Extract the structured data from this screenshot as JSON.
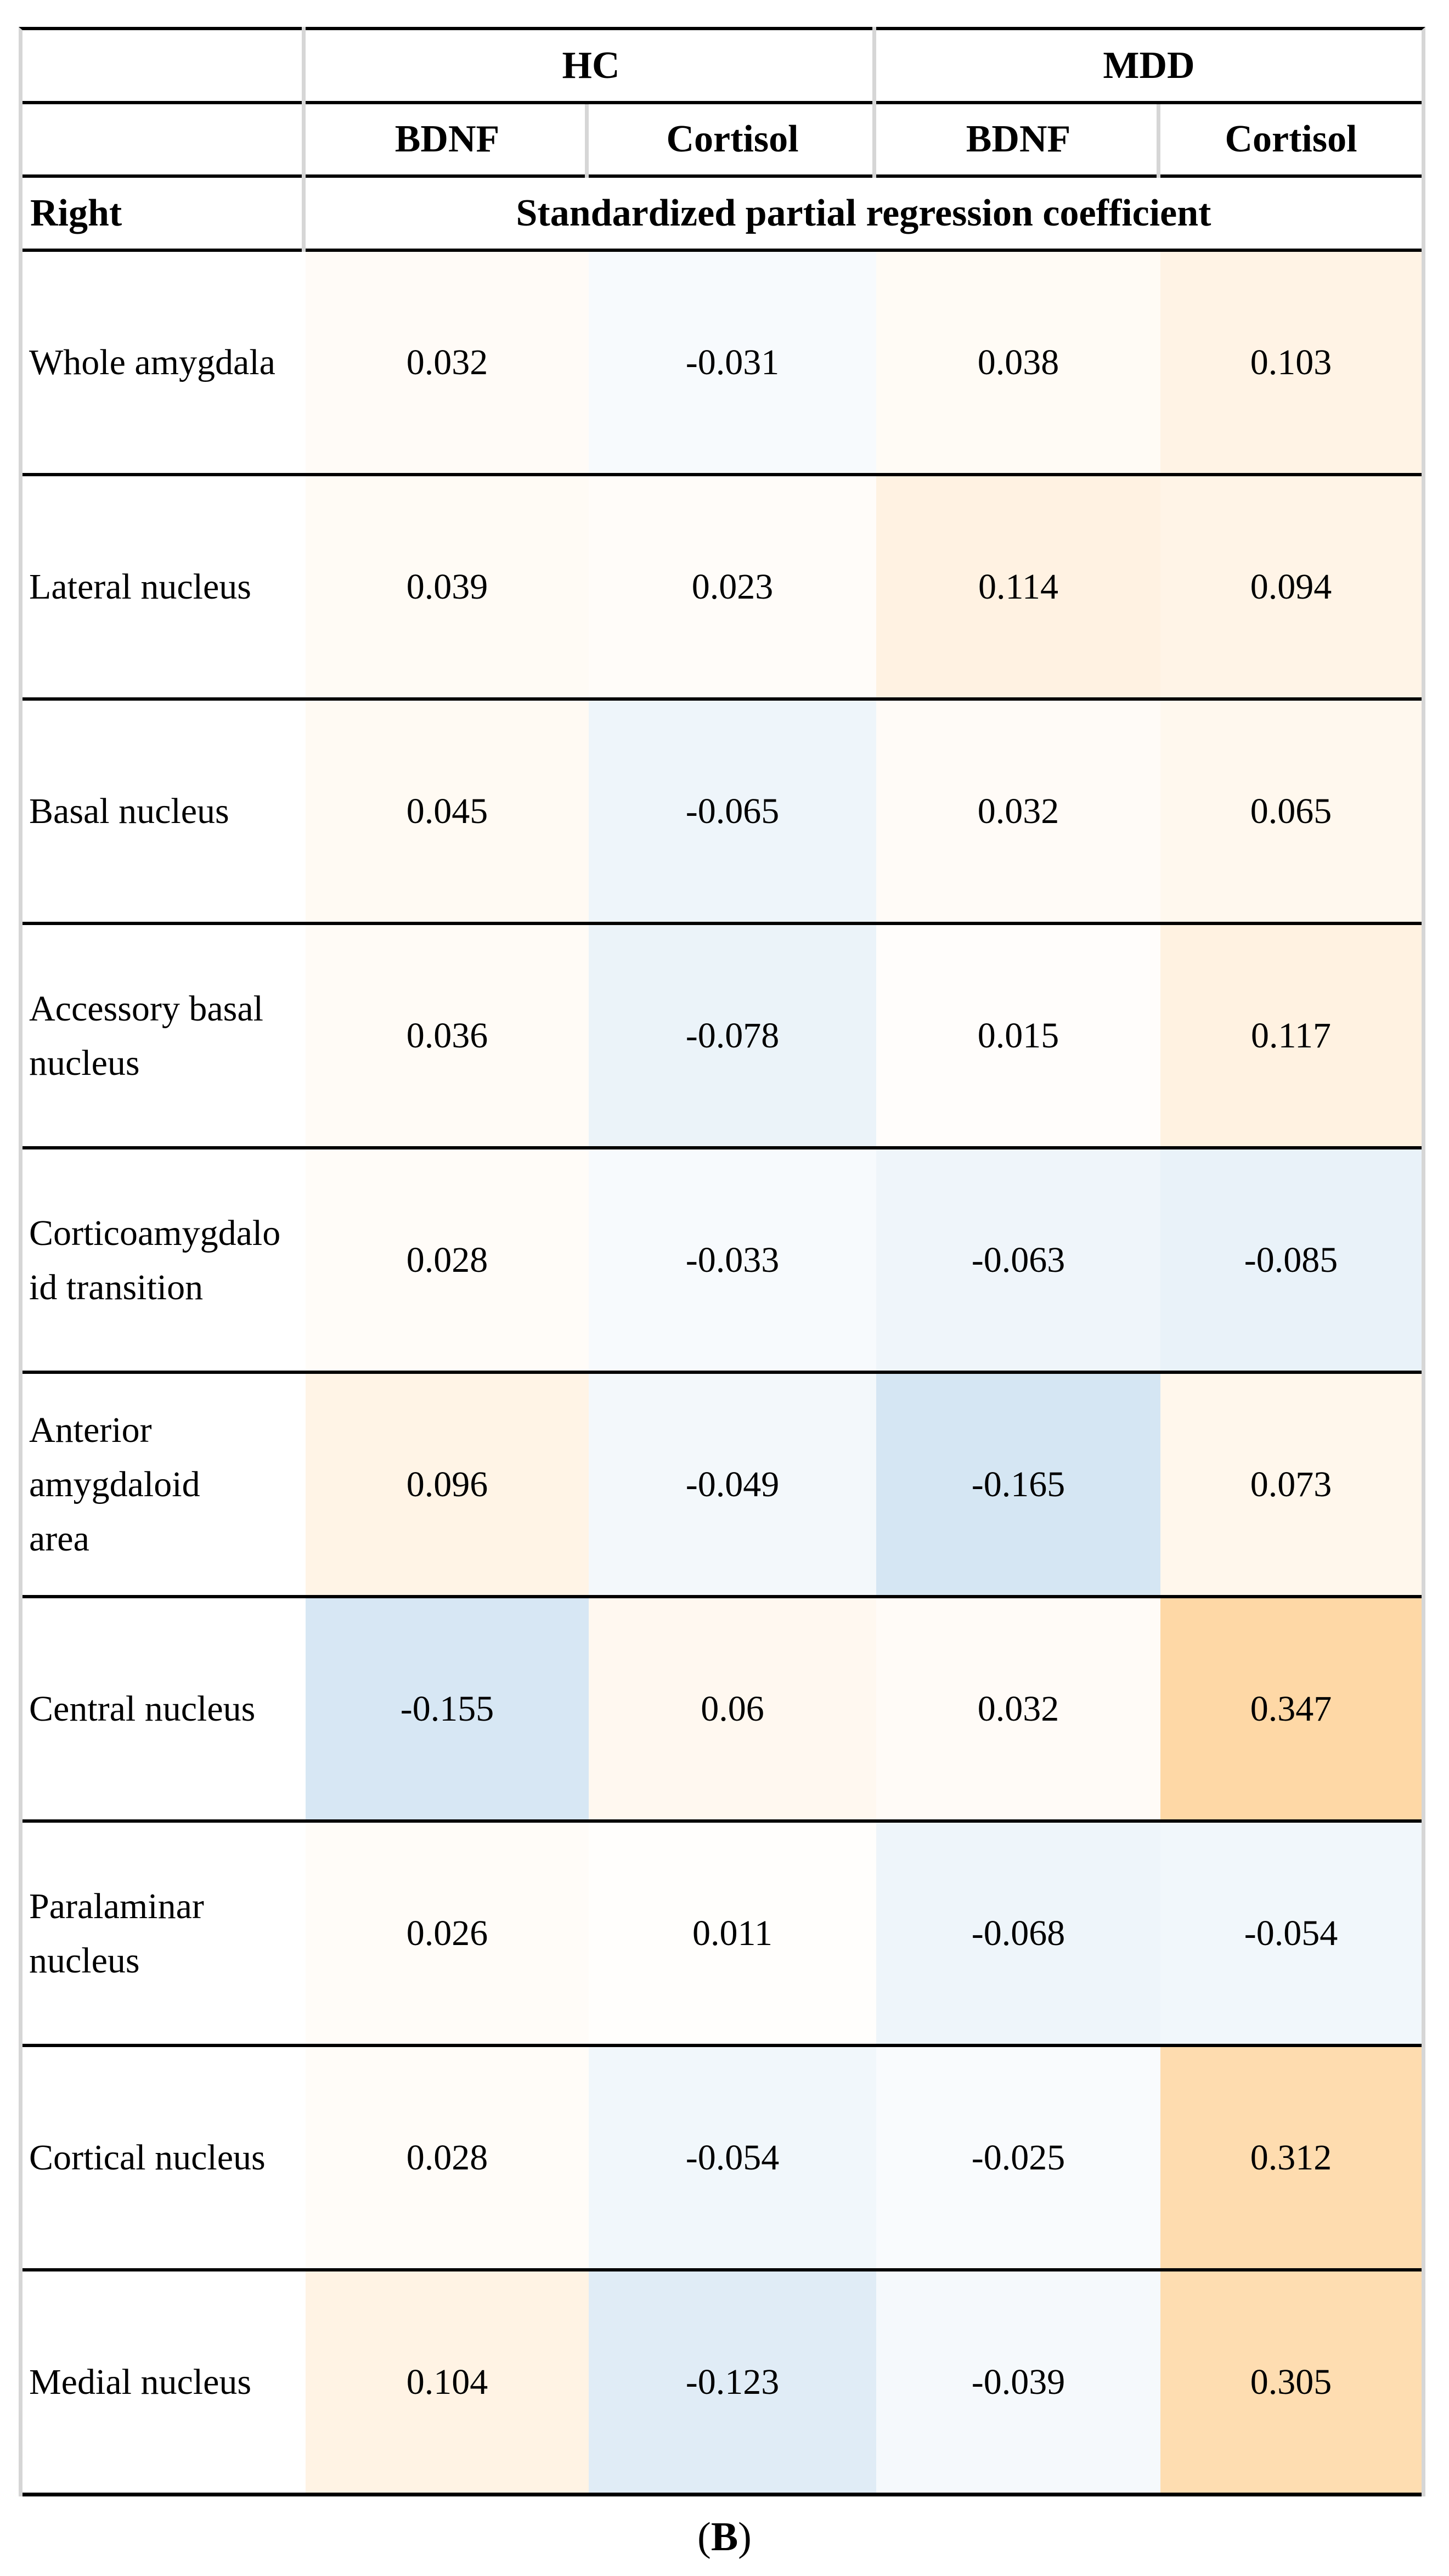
{
  "table": {
    "header": {
      "groups": [
        "HC",
        "MDD"
      ],
      "columns": [
        "BDNF",
        "Cortisol",
        "BDNF",
        "Cortisol"
      ],
      "side_label": "Right",
      "span_label": "Standardized partial regression coefficient"
    },
    "rows": [
      {
        "label": "Whole amygdala",
        "cells": [
          {
            "value": "0.032",
            "bg": "#FFFBF7"
          },
          {
            "value": "-0.031",
            "bg": "#F7FAFD"
          },
          {
            "value": "0.038",
            "bg": "#FFFBF5"
          },
          {
            "value": "0.103",
            "bg": "#FFF3E5"
          }
        ]
      },
      {
        "label": "Lateral nucleus",
        "cells": [
          {
            "value": "0.039",
            "bg": "#FFFBF5"
          },
          {
            "value": "0.023",
            "bg": "#FFFCF9"
          },
          {
            "value": "0.114",
            "bg": "#FFF2E2"
          },
          {
            "value": "0.094",
            "bg": "#FFF4E7"
          }
        ]
      },
      {
        "label": "Basal nucleus",
        "cells": [
          {
            "value": "0.045",
            "bg": "#FFFAF3"
          },
          {
            "value": "-0.065",
            "bg": "#EEF5FA"
          },
          {
            "value": "0.032",
            "bg": "#FFFBF7"
          },
          {
            "value": "0.065",
            "bg": "#FFF8EE"
          }
        ]
      },
      {
        "label": "Accessory basal\nnucleus",
        "cells": [
          {
            "value": "0.036",
            "bg": "#FFFBF6"
          },
          {
            "value": "-0.078",
            "bg": "#EBF3F9"
          },
          {
            "value": "0.015",
            "bg": "#FFFDFB"
          },
          {
            "value": "0.117",
            "bg": "#FFF2E1"
          }
        ]
      },
      {
        "label": "Corticoamygdalo\nid transition",
        "cells": [
          {
            "value": "0.028",
            "bg": "#FFFCF8"
          },
          {
            "value": "-0.033",
            "bg": "#F7FAFD"
          },
          {
            "value": "-0.063",
            "bg": "#EFF5FA"
          },
          {
            "value": "-0.085",
            "bg": "#E9F2F9"
          }
        ]
      },
      {
        "label": "Anterior\namygdaloid\narea",
        "cells": [
          {
            "value": "0.096",
            "bg": "#FFF4E6"
          },
          {
            "value": "-0.049",
            "bg": "#F3F8FB"
          },
          {
            "value": "-0.165",
            "bg": "#D5E6F3"
          },
          {
            "value": "0.073",
            "bg": "#FFF7EC"
          }
        ]
      },
      {
        "label": "Central nucleus",
        "cells": [
          {
            "value": "-0.155",
            "bg": "#D7E7F4"
          },
          {
            "value": "0.06",
            "bg": "#FFF8F0"
          },
          {
            "value": "0.032",
            "bg": "#FFFBF7"
          },
          {
            "value": "0.347",
            "bg": "#FED8A6"
          }
        ]
      },
      {
        "label": "Paralaminar\nnucleus",
        "cells": [
          {
            "value": "0.026",
            "bg": "#FFFCF8"
          },
          {
            "value": "0.011",
            "bg": "#FFFEFC"
          },
          {
            "value": "-0.068",
            "bg": "#EEF5FA"
          },
          {
            "value": "-0.054",
            "bg": "#F1F7FB"
          }
        ]
      },
      {
        "label": "Cortical nucleus",
        "cells": [
          {
            "value": "0.028",
            "bg": "#FFFCF8"
          },
          {
            "value": "-0.054",
            "bg": "#F1F7FB"
          },
          {
            "value": "-0.025",
            "bg": "#F9FBFD"
          },
          {
            "value": "0.312",
            "bg": "#FEDCAF"
          }
        ]
      },
      {
        "label": "Medial nucleus",
        "cells": [
          {
            "value": "0.104",
            "bg": "#FFF3E4"
          },
          {
            "value": "-0.123",
            "bg": "#E0ECF6"
          },
          {
            "value": "-0.039",
            "bg": "#F5F9FC"
          },
          {
            "value": "0.305",
            "bg": "#FEDDB1"
          }
        ]
      }
    ]
  },
  "caption": {
    "prefix": "(",
    "letter": "B",
    "suffix": ")"
  },
  "colors": {
    "rule_black": "#000000",
    "separator_gray": "#d6d6d6",
    "positive_max": "#FED8A6",
    "negative_max": "#D5E6F3",
    "cell_text": "#000000"
  },
  "chart_data": {
    "type": "heatmap",
    "title": "Standardized partial regression coefficient",
    "side": "Right",
    "col_groups": [
      "HC",
      "HC",
      "MDD",
      "MDD"
    ],
    "col_labels": [
      "BDNF",
      "Cortisol",
      "BDNF",
      "Cortisol"
    ],
    "row_labels": [
      "Whole amygdala",
      "Lateral nucleus",
      "Basal nucleus",
      "Accessory basal nucleus",
      "Corticoamygdaloid transition",
      "Anterior amygdaloid area",
      "Central nucleus",
      "Paralaminar nucleus",
      "Cortical nucleus",
      "Medial nucleus"
    ],
    "values": [
      [
        0.032,
        -0.031,
        0.038,
        0.103
      ],
      [
        0.039,
        0.023,
        0.114,
        0.094
      ],
      [
        0.045,
        -0.065,
        0.032,
        0.065
      ],
      [
        0.036,
        -0.078,
        0.015,
        0.117
      ],
      [
        0.028,
        -0.033,
        -0.063,
        -0.085
      ],
      [
        0.096,
        -0.049,
        -0.165,
        0.073
      ],
      [
        -0.155,
        0.06,
        0.032,
        0.347
      ],
      [
        0.026,
        0.011,
        -0.068,
        -0.054
      ],
      [
        0.028,
        -0.054,
        -0.025,
        0.312
      ],
      [
        0.104,
        -0.123,
        -0.039,
        0.305
      ]
    ],
    "colormap": "diverging blue (negative) to orange (positive), white near zero",
    "legend": "none",
    "caption": "(B)"
  }
}
